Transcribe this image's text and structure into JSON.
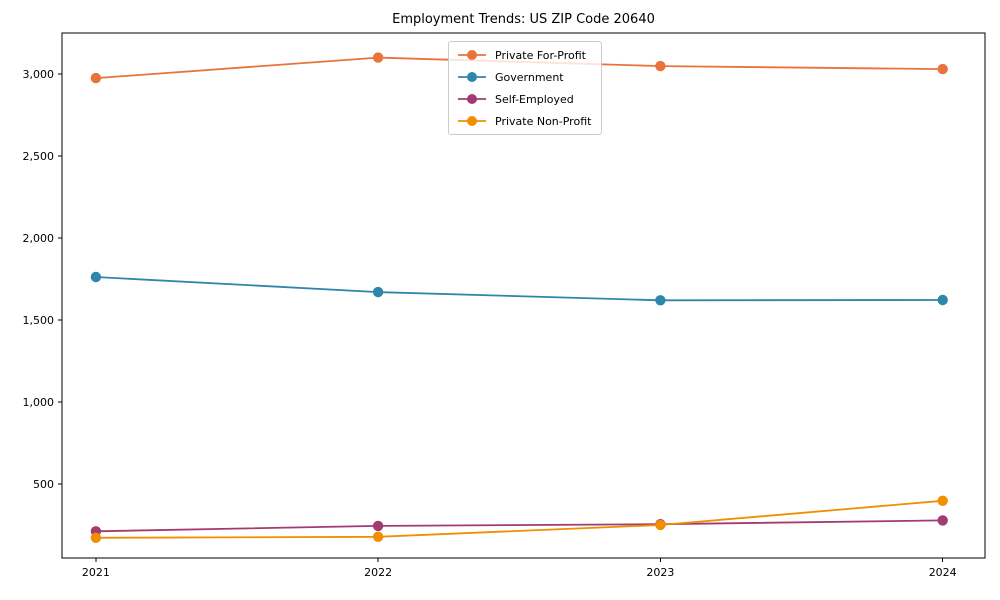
{
  "chart_data": {
    "type": "line",
    "title": "Employment Trends: US ZIP Code 20640",
    "x": [
      2021,
      2022,
      2023,
      2024
    ],
    "x_tick_labels": [
      "2021",
      "2022",
      "2023",
      "2024"
    ],
    "yticks": [
      500,
      1000,
      1500,
      2000,
      2500,
      3000
    ],
    "y_tick_labels": [
      "500",
      "1,000",
      "1,500",
      "2,000",
      "2,500",
      "3,000"
    ],
    "xlim": [
      2020.88,
      2024.15
    ],
    "ylim": [
      49,
      3250
    ],
    "grid": false,
    "legend_position": "upper-center",
    "axis_color": "#000000",
    "background_color": "#ffffff",
    "series": [
      {
        "name": "Private For-Profit",
        "color": "#e8743b",
        "values": [
          2975,
          3100,
          3048,
          3030
        ]
      },
      {
        "name": "Government",
        "color": "#2e86ab",
        "values": [
          1762,
          1670,
          1620,
          1622
        ]
      },
      {
        "name": "Self-Employed",
        "color": "#a23b72",
        "values": [
          212,
          245,
          255,
          278
        ]
      },
      {
        "name": "Private Non-Profit",
        "color": "#f18f01",
        "values": [
          172,
          178,
          250,
          398
        ]
      }
    ]
  }
}
